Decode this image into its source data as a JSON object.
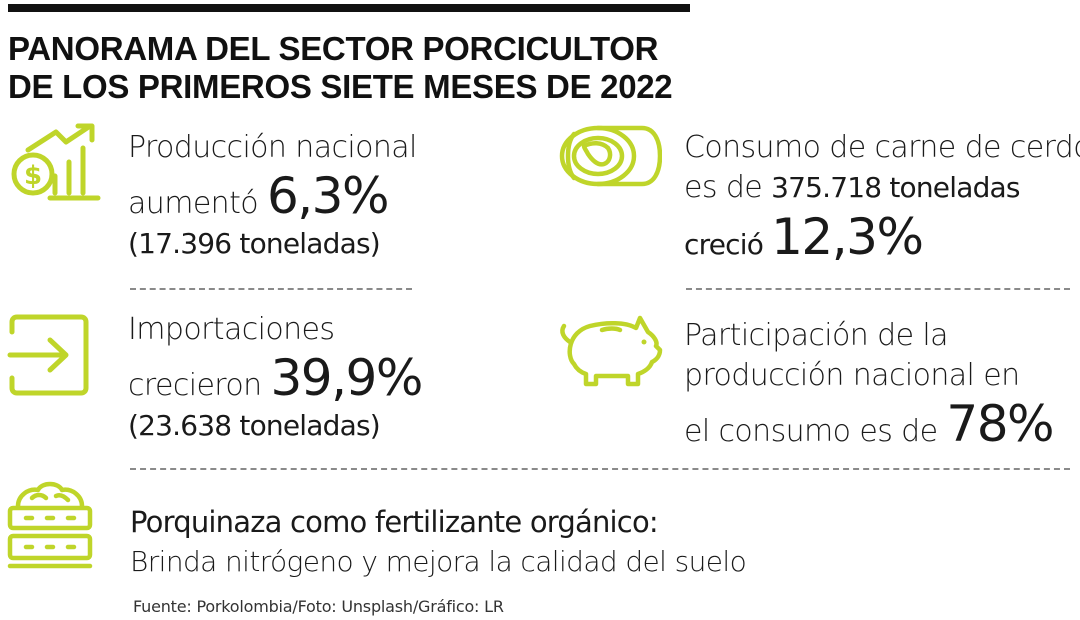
{
  "header": {
    "title_line1": "PANORAMA DEL SECTOR PORCICULTOR",
    "title_line2": "DE LOS PRIMEROS SIETE MESES DE 2022"
  },
  "colors": {
    "accent": "#bfd52a",
    "title": "#111111",
    "divider": "#8a8a8a"
  },
  "items": {
    "produccion": {
      "icon": "money-growth-icon",
      "line1": "Producción nacional",
      "line2_text": "aumentó ",
      "line2_value": "6,3%",
      "line3": "(17.396 toneladas)"
    },
    "consumo": {
      "icon": "pork-meat-icon",
      "line1": "Consumo de carne de cerdo",
      "line2_text": "es de ",
      "line2_value": "375.718 toneladas",
      "line3_text": "creció ",
      "line3_value": "12,3%"
    },
    "importaciones": {
      "icon": "import-arrow-icon",
      "line1": "Importaciones",
      "line2_text": "crecieron ",
      "line2_value": "39,9%",
      "line3": "(23.638 toneladas)"
    },
    "participacion": {
      "icon": "pig-icon",
      "line1": "Participación de la",
      "line2": "producción nacional en",
      "line3_text": "el consumo es de ",
      "line3_value": "78%"
    },
    "porquinaza": {
      "icon": "fertilizer-crate-icon",
      "line1": "Porquinaza como fertilizante orgánico:",
      "line2": "Brinda nitrógeno y mejora la calidad del suelo"
    }
  },
  "footer": {
    "source": "Fuente: Porkolombia/Foto: Unsplash/Gráfico: LR"
  }
}
